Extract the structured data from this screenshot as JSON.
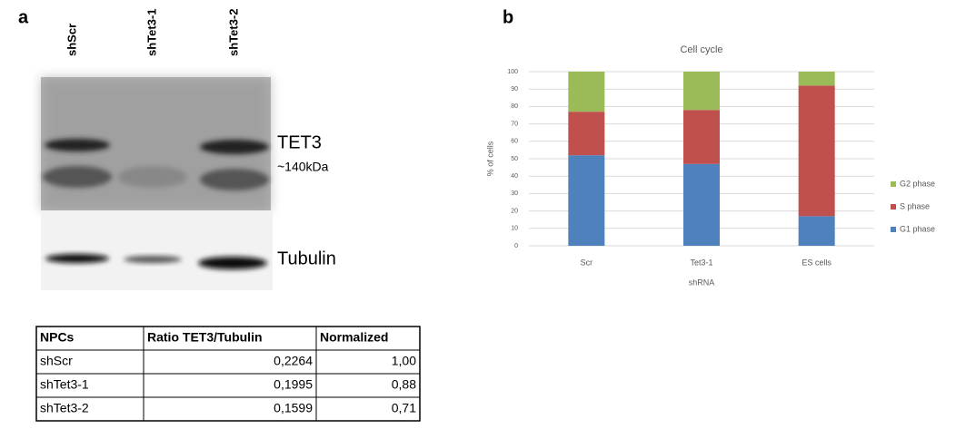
{
  "panel_labels": [
    "a",
    "b"
  ],
  "blot": {
    "lanes": [
      "shScr",
      "shTet3-1",
      "shTet3-2"
    ],
    "protein": "TET3",
    "size": "~140kDa",
    "control": "Tubulin"
  },
  "table": {
    "header": [
      "NPCs",
      "Ratio TET3/Tubulin",
      "Normalized"
    ],
    "rows": [
      [
        "shScr",
        "0,2264",
        "1,00"
      ],
      [
        "shTet3-1",
        "0,1995",
        "0,88"
      ],
      [
        "shTet3-2",
        "0,1599",
        "0,71"
      ]
    ]
  },
  "chart_data": {
    "type": "stacked_bar",
    "title": "Cell cycle",
    "x_label": "shRNA",
    "y_label": "% of cells",
    "categories": [
      "Scr",
      "Tet3-1",
      "ES cells"
    ],
    "series": [
      {
        "name": "G1 phase",
        "color": "#4f81bd",
        "values": [
          52,
          47,
          17
        ]
      },
      {
        "name": "S phase",
        "color": "#c0504d",
        "values": [
          25,
          31,
          75
        ]
      },
      {
        "name": "G2 phase",
        "color": "#9bbb59",
        "values": [
          23,
          22,
          8
        ]
      }
    ],
    "ylim": [
      0,
      100
    ],
    "yticks": [
      0,
      10,
      20,
      30,
      40,
      50,
      60,
      70,
      80,
      90,
      100
    ],
    "grid": true,
    "legend_position": "right"
  }
}
